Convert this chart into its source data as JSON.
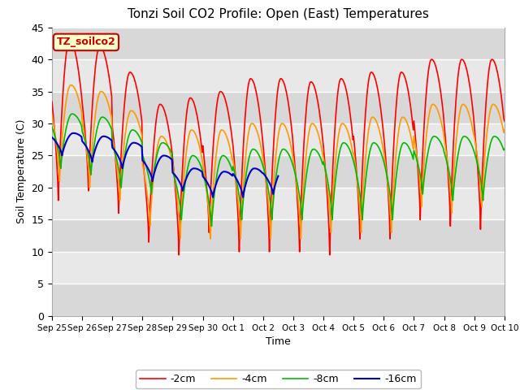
{
  "title": "Tonzi Soil CO2 Profile: Open (East) Temperatures",
  "xlabel": "Time",
  "ylabel": "Soil Temperature (C)",
  "ylim": [
    0,
    45
  ],
  "line_colors": [
    "#ff0000",
    "#ff9900",
    "#00bb00",
    "#0000cc"
  ],
  "line_labels": [
    "-2cm",
    "-4cm",
    "-8cm",
    "-16cm"
  ],
  "sensor_label": "TZ_soilco2",
  "xtick_labels": [
    "Sep 25",
    "Sep 26",
    "Sep 27",
    "Sep 28",
    "Sep 29",
    "Sep 30",
    "Oct 1",
    "Oct 2",
    "Oct 3",
    "Oct 4",
    "Oct 5",
    "Oct 6",
    "Oct 7",
    "Oct 8",
    "Oct 9",
    "Oct 10"
  ],
  "background_color": "#ffffff",
  "plot_bg_color": "#e0e0e0",
  "grid_color": "#ffffff",
  "band_color1": "#d8d8d8",
  "band_color2": "#e8e8e8"
}
